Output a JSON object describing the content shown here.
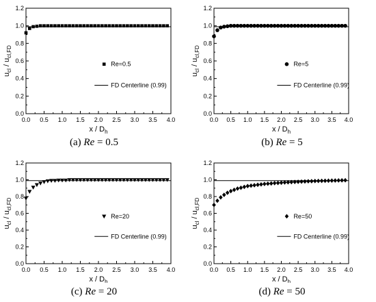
{
  "chart_data": [
    {
      "type": "scatter",
      "xlabel": "x / D",
      "xlabel_sub": "h",
      "ylabel": "u",
      "ylabel_sub": "cl",
      "ylabel_mid": " / u",
      "ylabel_sub2": "cl,FD",
      "xlim": [
        0.0,
        4.0
      ],
      "ylim": [
        0.0,
        1.2
      ],
      "xticks": [
        "0.0",
        "0.5",
        "1.0",
        "1.5",
        "2.0",
        "2.5",
        "3.0",
        "3.5",
        "4.0"
      ],
      "yticks": [
        "0.0",
        "0.2",
        "0.4",
        "0.6",
        "0.8",
        "1.0",
        "1.2"
      ],
      "legend_position": "center-right",
      "grid": false,
      "marker": "square",
      "fd_line": {
        "name": "FD Centerline (0.99)",
        "y": 0.99,
        "x": [
          0.0,
          4.0
        ]
      },
      "series": [
        {
          "name": "Re=0.5",
          "x": [
            0.0,
            0.1,
            0.2,
            0.3,
            0.4,
            0.5,
            0.6,
            0.7,
            0.8,
            0.9,
            1.0,
            1.1,
            1.2,
            1.3,
            1.4,
            1.5,
            1.6,
            1.7,
            1.8,
            1.9,
            2.0,
            2.1,
            2.2,
            2.3,
            2.4,
            2.5,
            2.6,
            2.7,
            2.8,
            2.9,
            3.0,
            3.1,
            3.2,
            3.3,
            3.4,
            3.5,
            3.6,
            3.7,
            3.8,
            3.9
          ],
          "y": [
            0.92,
            0.97,
            0.99,
            0.995,
            1.0,
            1.0,
            1.0,
            1.0,
            1.0,
            1.0,
            1.0,
            1.0,
            1.0,
            1.0,
            1.0,
            1.0,
            1.0,
            1.0,
            1.0,
            1.0,
            1.0,
            1.0,
            1.0,
            1.0,
            1.0,
            1.0,
            1.0,
            1.0,
            1.0,
            1.0,
            1.0,
            1.0,
            1.0,
            1.0,
            1.0,
            1.0,
            1.0,
            1.0,
            1.0,
            1.0
          ]
        }
      ]
    },
    {
      "type": "scatter",
      "xlabel": "x / D",
      "xlabel_sub": "h",
      "ylabel": "u",
      "ylabel_sub": "cl",
      "ylabel_mid": " / u",
      "ylabel_sub2": "cl,FD",
      "xlim": [
        0.0,
        4.0
      ],
      "ylim": [
        0.0,
        1.2
      ],
      "xticks": [
        "0.0",
        "0.5",
        "1.0",
        "1.5",
        "2.0",
        "2.5",
        "3.0",
        "3.5",
        "4.0"
      ],
      "yticks": [
        "0.0",
        "0.2",
        "0.4",
        "0.6",
        "0.8",
        "1.0",
        "1.2"
      ],
      "legend_position": "center-right",
      "grid": false,
      "marker": "circle",
      "fd_line": {
        "name": "FD Centerline (0.99)",
        "y": 0.99,
        "x": [
          0.0,
          4.0
        ]
      },
      "series": [
        {
          "name": "Re=5",
          "x": [
            0.0,
            0.1,
            0.2,
            0.3,
            0.4,
            0.5,
            0.6,
            0.7,
            0.8,
            0.9,
            1.0,
            1.1,
            1.2,
            1.3,
            1.4,
            1.5,
            1.6,
            1.7,
            1.8,
            1.9,
            2.0,
            2.1,
            2.2,
            2.3,
            2.4,
            2.5,
            2.6,
            2.7,
            2.8,
            2.9,
            3.0,
            3.1,
            3.2,
            3.3,
            3.4,
            3.5,
            3.6,
            3.7,
            3.8,
            3.9
          ],
          "y": [
            0.88,
            0.95,
            0.98,
            0.99,
            0.995,
            1.0,
            1.0,
            1.0,
            1.0,
            1.0,
            1.0,
            1.0,
            1.0,
            1.0,
            1.0,
            1.0,
            1.0,
            1.0,
            1.0,
            1.0,
            1.0,
            1.0,
            1.0,
            1.0,
            1.0,
            1.0,
            1.0,
            1.0,
            1.0,
            1.0,
            1.0,
            1.0,
            1.0,
            1.0,
            1.0,
            1.0,
            1.0,
            1.0,
            1.0,
            1.0
          ]
        }
      ]
    },
    {
      "type": "scatter",
      "xlabel": "x / D",
      "xlabel_sub": "h",
      "ylabel": "u",
      "ylabel_sub": "cl",
      "ylabel_mid": " / u",
      "ylabel_sub2": "cl,FD",
      "xlim": [
        0.0,
        4.0
      ],
      "ylim": [
        0.0,
        1.2
      ],
      "xticks": [
        "0.0",
        "0.5",
        "1.0",
        "1.5",
        "2.0",
        "2.5",
        "3.0",
        "3.5",
        "4.0"
      ],
      "yticks": [
        "0.0",
        "0.2",
        "0.4",
        "0.6",
        "0.8",
        "1.0",
        "1.2"
      ],
      "legend_position": "center-right",
      "grid": false,
      "marker": "triangle-down",
      "fd_line": {
        "name": "FD Centerline (0.99)",
        "y": 0.99,
        "x": [
          0.0,
          4.0
        ]
      },
      "series": [
        {
          "name": "Re=20",
          "x": [
            0.0,
            0.1,
            0.2,
            0.3,
            0.4,
            0.5,
            0.6,
            0.7,
            0.8,
            0.9,
            1.0,
            1.1,
            1.2,
            1.3,
            1.4,
            1.5,
            1.6,
            1.7,
            1.8,
            1.9,
            2.0,
            2.1,
            2.2,
            2.3,
            2.4,
            2.5,
            2.6,
            2.7,
            2.8,
            2.9,
            3.0,
            3.1,
            3.2,
            3.3,
            3.4,
            3.5,
            3.6,
            3.7,
            3.8,
            3.9
          ],
          "y": [
            0.78,
            0.86,
            0.91,
            0.94,
            0.96,
            0.975,
            0.985,
            0.99,
            0.99,
            0.995,
            0.995,
            0.995,
            1.0,
            1.0,
            1.0,
            1.0,
            1.0,
            1.0,
            1.0,
            1.0,
            1.0,
            1.0,
            1.0,
            1.0,
            1.0,
            1.0,
            1.0,
            1.0,
            1.0,
            1.0,
            1.0,
            1.0,
            1.0,
            1.0,
            1.0,
            1.0,
            1.0,
            1.0,
            1.0,
            1.0
          ]
        }
      ]
    },
    {
      "type": "scatter",
      "xlabel": "x / D",
      "xlabel_sub": "h",
      "ylabel": "u",
      "ylabel_sub": "cl",
      "ylabel_mid": " / u",
      "ylabel_sub2": "cl,FD",
      "xlim": [
        0.0,
        4.0
      ],
      "ylim": [
        0.0,
        1.2
      ],
      "xticks": [
        "0.0",
        "0.5",
        "1.0",
        "1.5",
        "2.0",
        "2.5",
        "3.0",
        "3.5",
        "4.0"
      ],
      "yticks": [
        "0.0",
        "0.2",
        "0.4",
        "0.6",
        "0.8",
        "1.0",
        "1.2"
      ],
      "legend_position": "center-right",
      "grid": false,
      "marker": "diamond",
      "fd_line": {
        "name": "FD Centerline (0.99)",
        "y": 0.99,
        "x": [
          0.0,
          4.0
        ]
      },
      "series": [
        {
          "name": "Re=50",
          "x": [
            0.0,
            0.1,
            0.2,
            0.3,
            0.4,
            0.5,
            0.6,
            0.7,
            0.8,
            0.9,
            1.0,
            1.1,
            1.2,
            1.3,
            1.4,
            1.5,
            1.6,
            1.7,
            1.8,
            1.9,
            2.0,
            2.1,
            2.2,
            2.3,
            2.4,
            2.5,
            2.6,
            2.7,
            2.8,
            2.9,
            3.0,
            3.1,
            3.2,
            3.3,
            3.4,
            3.5,
            3.6,
            3.7,
            3.8,
            3.9
          ],
          "y": [
            0.7,
            0.75,
            0.79,
            0.82,
            0.845,
            0.865,
            0.88,
            0.895,
            0.905,
            0.915,
            0.925,
            0.93,
            0.935,
            0.94,
            0.945,
            0.95,
            0.953,
            0.956,
            0.96,
            0.962,
            0.965,
            0.968,
            0.97,
            0.972,
            0.974,
            0.976,
            0.978,
            0.98,
            0.982,
            0.983,
            0.985,
            0.986,
            0.987,
            0.988,
            0.989,
            0.99,
            0.991,
            0.992,
            0.993,
            0.994
          ]
        }
      ]
    }
  ],
  "captions": [
    {
      "label": "(a) ",
      "re": "Re",
      "value": " = 0.5"
    },
    {
      "label": "(b) ",
      "re": "Re",
      "value": " = 5"
    },
    {
      "label": "(c) ",
      "re": "Re",
      "value": " = 20"
    },
    {
      "label": "(d) ",
      "re": "Re",
      "value": " = 50"
    }
  ]
}
